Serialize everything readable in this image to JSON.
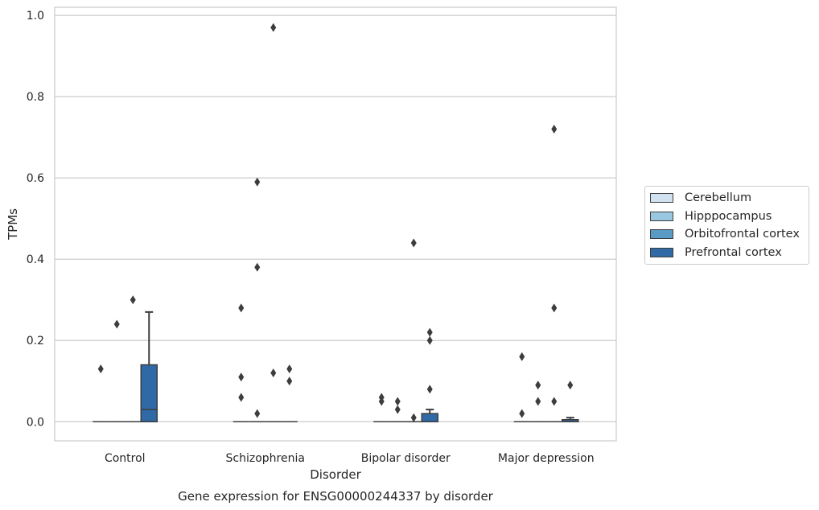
{
  "chart_data": {
    "type": "box",
    "title": "Gene expression for ENSG00000244337 by disorder",
    "xlabel": "Disorder",
    "ylabel": "TPMs",
    "categories": [
      "Control",
      "Schizophrenia",
      "Bipolar disorder",
      "Major depression"
    ],
    "ylim": [
      -0.047,
      1.02
    ],
    "yticks": [
      0.0,
      0.2,
      0.4,
      0.6,
      0.8,
      1.0
    ],
    "ytick_labels": [
      "0.0",
      "0.2",
      "0.4",
      "0.6",
      "0.8",
      "1.0"
    ],
    "grid": true,
    "legend_position": "right",
    "series": [
      {
        "name": "Cerebellum",
        "color": "#d1e1ef",
        "boxes": [
          {
            "q1": 0,
            "median": 0,
            "q3": 0,
            "whisker_low": 0,
            "whisker_high": 0,
            "outliers": [
              0.13
            ]
          },
          {
            "q1": 0,
            "median": 0,
            "q3": 0,
            "whisker_low": 0,
            "whisker_high": 0,
            "outliers": [
              0.28,
              0.11,
              0.06
            ]
          },
          {
            "q1": 0,
            "median": 0,
            "q3": 0,
            "whisker_low": 0,
            "whisker_high": 0,
            "outliers": [
              0.06,
              0.05
            ]
          },
          {
            "q1": 0,
            "median": 0,
            "q3": 0,
            "whisker_low": 0,
            "whisker_high": 0,
            "outliers": [
              0.16,
              0.02
            ]
          }
        ]
      },
      {
        "name": "Hipppocampus",
        "color": "#9ac7e0",
        "boxes": [
          {
            "q1": 0,
            "median": 0,
            "q3": 0,
            "whisker_low": 0,
            "whisker_high": 0,
            "outliers": [
              0.24
            ]
          },
          {
            "q1": 0,
            "median": 0,
            "q3": 0,
            "whisker_low": 0,
            "whisker_high": 0,
            "outliers": [
              0.59,
              0.38,
              0.02
            ]
          },
          {
            "q1": 0,
            "median": 0,
            "q3": 0,
            "whisker_low": 0,
            "whisker_high": 0,
            "outliers": [
              0.05,
              0.03
            ]
          },
          {
            "q1": 0,
            "median": 0,
            "q3": 0,
            "whisker_low": 0,
            "whisker_high": 0,
            "outliers": [
              0.09,
              0.05
            ]
          }
        ]
      },
      {
        "name": "Orbitofrontal cortex",
        "color": "#5a9ac6",
        "boxes": [
          {
            "q1": 0,
            "median": 0,
            "q3": 0,
            "whisker_low": 0,
            "whisker_high": 0,
            "outliers": [
              0.3
            ]
          },
          {
            "q1": 0,
            "median": 0,
            "q3": 0,
            "whisker_low": 0,
            "whisker_high": 0,
            "outliers": [
              0.97,
              0.12
            ]
          },
          {
            "q1": 0,
            "median": 0,
            "q3": 0,
            "whisker_low": 0,
            "whisker_high": 0,
            "outliers": [
              0.44,
              0.01
            ]
          },
          {
            "q1": 0,
            "median": 0,
            "q3": 0,
            "whisker_low": 0,
            "whisker_high": 0,
            "outliers": [
              0.72,
              0.28,
              0.05
            ]
          }
        ]
      },
      {
        "name": "Prefrontal cortex",
        "color": "#2f6aa6",
        "boxes": [
          {
            "q1": 0,
            "median": 0.03,
            "q3": 0.14,
            "whisker_low": 0,
            "whisker_high": 0.27,
            "outliers": []
          },
          {
            "q1": 0,
            "median": 0,
            "q3": 0,
            "whisker_low": 0,
            "whisker_high": 0,
            "outliers": [
              0.13,
              0.1
            ]
          },
          {
            "q1": 0,
            "median": 0,
            "q3": 0.02,
            "whisker_low": 0,
            "whisker_high": 0.03,
            "outliers": [
              0.22,
              0.2,
              0.08
            ]
          },
          {
            "q1": 0,
            "median": 0,
            "q3": 0.005,
            "whisker_low": 0,
            "whisker_high": 0.01,
            "outliers": [
              0.09
            ]
          }
        ]
      }
    ]
  }
}
